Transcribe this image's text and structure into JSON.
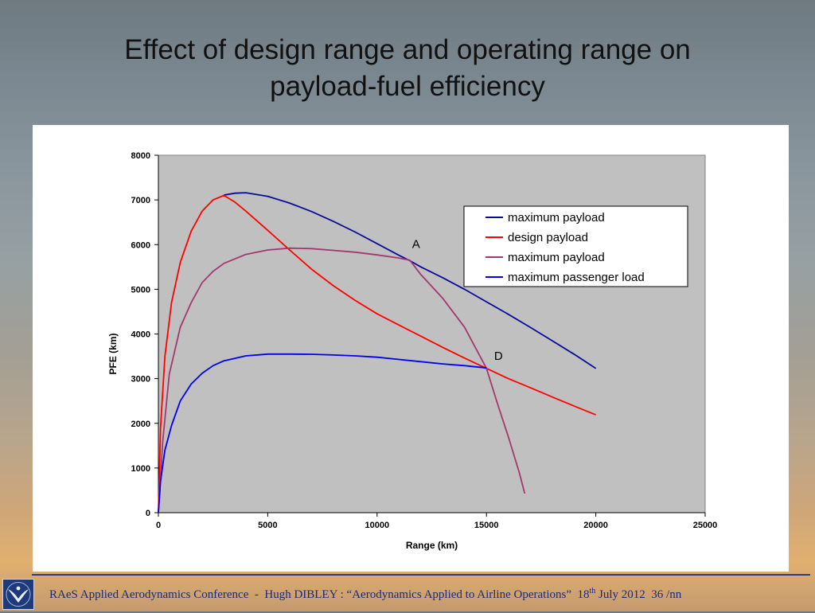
{
  "slide": {
    "title_line1": "Effect of design range and operating range on",
    "title_line2": "payload-fuel efficiency"
  },
  "footer": {
    "conference": "RAeS Applied Aerodynamics Conference",
    "separator": "-",
    "author": "Hugh DIBLEY :",
    "talk": "“Aerodynamics Applied to Airline Operations”",
    "date_day": "18",
    "date_suffix": "th",
    "date_rest": "July  2012",
    "page": "36 /nn",
    "logo_icon": "raes-eagle-logo-icon"
  },
  "chart_data": {
    "type": "line",
    "title": "",
    "xlabel": "Range (km)",
    "ylabel": "PFE (km)",
    "xlim": [
      0,
      25000
    ],
    "ylim": [
      0,
      8000
    ],
    "xticks": [
      "0",
      "5000",
      "10000",
      "15000",
      "20000",
      "25000"
    ],
    "yticks": [
      "0",
      "1000",
      "2000",
      "3000",
      "4000",
      "5000",
      "6000",
      "7000",
      "8000"
    ],
    "plot_background": "#c0c0c0",
    "grid": false,
    "legend_position": "top-right",
    "legend": [
      {
        "label": "maximum payload",
        "color": "#0a0a9a"
      },
      {
        "label": "design payload",
        "color": "#ff0000"
      },
      {
        "label": "maximum payload",
        "color": "#a3386e"
      },
      {
        "label": "maximum passenger load",
        "color": "#0000ee"
      }
    ],
    "series": [
      {
        "color": "#0a0a9a",
        "x": [
          3000,
          3500,
          4000,
          5000,
          6000,
          7000,
          8000,
          9000,
          10000,
          11000,
          11500,
          12000,
          13000,
          14000,
          15000,
          16000,
          17000,
          18000,
          19000,
          20000
        ],
        "y": [
          7110,
          7150,
          7160,
          7080,
          6930,
          6740,
          6520,
          6280,
          6020,
          5760,
          5640,
          5500,
          5260,
          5000,
          4720,
          4440,
          4150,
          3850,
          3550,
          3230
        ]
      },
      {
        "color": "#ff0000",
        "x": [
          0,
          100,
          300,
          600,
          1000,
          1500,
          2000,
          2500,
          3000,
          3500,
          4000,
          5000,
          6000,
          7000,
          8000,
          9000,
          10000,
          11000,
          12000,
          13000,
          14000,
          15000,
          16000,
          17000,
          18000,
          19000,
          20000
        ],
        "y": [
          0,
          1900,
          3500,
          4700,
          5600,
          6300,
          6750,
          7000,
          7100,
          6950,
          6750,
          6320,
          5880,
          5450,
          5080,
          4750,
          4450,
          4200,
          3950,
          3700,
          3460,
          3230,
          3000,
          2800,
          2590,
          2390,
          2190
        ]
      },
      {
        "color": "#a3386e",
        "x": [
          0,
          200,
          500,
          1000,
          1500,
          2000,
          2500,
          3000,
          4000,
          5000,
          6000,
          7000,
          8000,
          9000,
          10000,
          11000,
          11500,
          12000,
          13000,
          14000,
          15000,
          15500,
          16000,
          16500,
          16750
        ],
        "y": [
          0,
          1600,
          3100,
          4150,
          4700,
          5150,
          5400,
          5580,
          5780,
          5880,
          5920,
          5910,
          5870,
          5830,
          5770,
          5700,
          5650,
          5330,
          4800,
          4150,
          3230,
          2450,
          1700,
          900,
          430
        ]
      },
      {
        "color": "#0000ee",
        "x": [
          0,
          100,
          300,
          600,
          1000,
          1500,
          2000,
          2500,
          3000,
          4000,
          5000,
          6000,
          7000,
          8000,
          9000,
          10000,
          11000,
          12000,
          13000,
          14000,
          15000
        ],
        "y": [
          0,
          700,
          1400,
          1950,
          2500,
          2880,
          3120,
          3290,
          3400,
          3510,
          3550,
          3550,
          3545,
          3530,
          3510,
          3480,
          3430,
          3380,
          3330,
          3290,
          3240
        ]
      }
    ],
    "annotations": [
      {
        "text": "A",
        "x": 11600,
        "y": 5920
      },
      {
        "text": "D",
        "x": 15350,
        "y": 3420
      }
    ]
  }
}
